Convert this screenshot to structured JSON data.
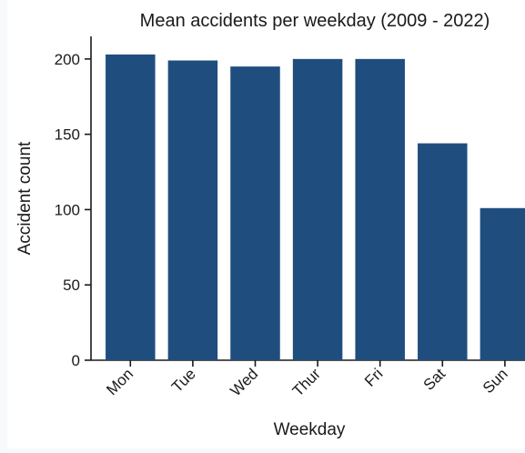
{
  "chart_data": {
    "type": "bar",
    "title": "Mean accidents per weekday (2009 - 2022)",
    "xlabel": "Weekday",
    "ylabel": "Accident count",
    "categories": [
      "Mon",
      "Tue",
      "Wed",
      "Thur",
      "Fri",
      "Sat",
      "Sun"
    ],
    "values": [
      203,
      199,
      195,
      200,
      200,
      144,
      101
    ],
    "ylim": [
      0,
      215
    ],
    "yticks": [
      0,
      50,
      100,
      150,
      200
    ],
    "ytick_labels": [
      "0",
      "50",
      "100",
      "150",
      "200"
    ],
    "bar_color": "#1f4e7e",
    "grid": false,
    "legend": "none"
  }
}
